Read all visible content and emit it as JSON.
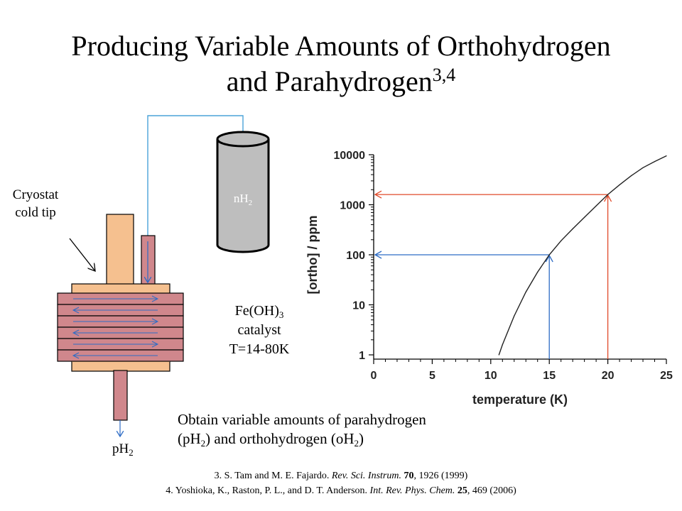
{
  "title": {
    "line1": "Producing Variable Amounts of Orthohydrogen",
    "line2_main": "and Parahydrogen",
    "line2_sup": "3,4"
  },
  "apparatus": {
    "cylinder_label_main": "nH",
    "cylinder_label_sub": "2",
    "cold_tip_line1": "Cryostat",
    "cold_tip_line2": "cold tip",
    "catalyst_formula_main": "Fe(OH)",
    "catalyst_formula_sub": "3",
    "catalyst_word": "catalyst",
    "catalyst_temperature": "T=14-80K",
    "output_label_main": "pH",
    "output_label_sub": "2",
    "colors": {
      "block": "#f5c08f",
      "coil": "#d0878c",
      "gas_line": "#4aa3d8",
      "arrow_blue": "#2e6cc5",
      "cylinder": "#bebebe"
    }
  },
  "note": {
    "line1": "Obtain variable amounts of parahydrogen",
    "line2_a": "(pH",
    "line2_b": ") and orthohydrogen (oH",
    "line2_c": ")",
    "sub": "2"
  },
  "references": [
    {
      "prefix": "3.  S. Tam and M. E. Fajardo. ",
      "journal": "Rev. Sci. Instrum.",
      "volume": "70",
      "rest": ", 1926 (1999)"
    },
    {
      "prefix": "4.  Yoshioka, K., Raston, P. L., and D. T. Anderson. ",
      "journal": "Int. Rev. Phys. Chem.",
      "volume": "25",
      "rest": ", 469 (2006)"
    }
  ],
  "chart_data": {
    "type": "line",
    "xlabel": "temperature (K)",
    "ylabel": "[ortho] / ppm",
    "xlim": [
      0,
      25
    ],
    "ylim": [
      1,
      10000
    ],
    "yscale": "log",
    "x_ticks": [
      "0",
      "5",
      "10",
      "15",
      "20",
      "25"
    ],
    "y_ticks": [
      "1",
      "10",
      "100",
      "1000",
      "10000"
    ],
    "series": [
      {
        "x": [
          10.7,
          11,
          12,
          13,
          14,
          15,
          16,
          17,
          18,
          19,
          20,
          21,
          22,
          23,
          24,
          25
        ],
        "y": [
          1,
          1.6,
          6,
          18,
          45,
          100,
          190,
          330,
          560,
          950,
          1600,
          2500,
          3800,
          5500,
          7300,
          9500
        ]
      }
    ],
    "markers": [
      {
        "x": 15,
        "y": 100,
        "color": "#2e6cc5"
      },
      {
        "x": 20,
        "y": 1600,
        "color": "#e04a2a"
      }
    ],
    "grid": false
  }
}
